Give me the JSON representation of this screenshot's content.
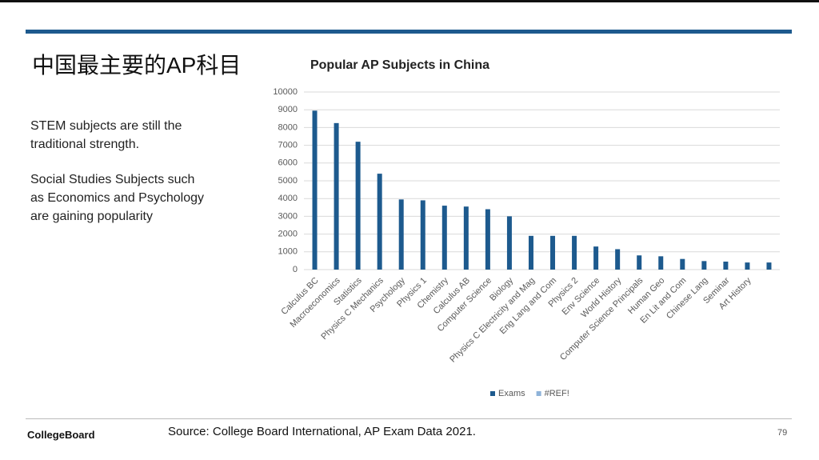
{
  "slide": {
    "title": "中国最主要的AP科目",
    "body": [
      "STEM subjects are still the traditional strength.",
      "Social Studies Subjects such as Economics and Psychology are gaining popularity"
    ],
    "logo": "CollegeBoard",
    "source": "Source: College Board International, AP Exam Data 2021.",
    "page_number": "79"
  },
  "chart_data": {
    "type": "bar",
    "title": "Popular AP Subjects in China",
    "categories": [
      "Calculus BC",
      "Macroeconomics",
      "Statistics",
      "Physics C Mechanics",
      "Psychology",
      "Physics 1",
      "Chemistry",
      "Calculus AB",
      "Computer Science",
      "Biology",
      "Physics C Electricity and Mag",
      "Eng Lang and Com",
      "Physics 2",
      "Env Science",
      "World History",
      "Computer Science Principals",
      "Human Geo",
      "En Lit and Com",
      "Chinese Lang",
      "Seminar",
      "Art History",
      null
    ],
    "series": [
      {
        "name": "Exams",
        "color": "#1d5a8e",
        "values": [
          8950,
          8250,
          7200,
          5400,
          3950,
          3900,
          3600,
          3550,
          3400,
          3000,
          1900,
          1900,
          1900,
          1300,
          1150,
          800,
          750,
          600,
          480,
          450,
          400,
          400
        ]
      },
      {
        "name": "#REF!",
        "color": "#8fb3d9",
        "values": [
          null,
          null,
          null,
          null,
          null,
          null,
          null,
          null,
          null,
          null,
          null,
          null,
          null,
          null,
          null,
          null,
          null,
          null,
          null,
          null,
          null,
          null
        ]
      }
    ],
    "ylim": [
      0,
      10000
    ],
    "yticks": [
      0,
      1000,
      2000,
      3000,
      4000,
      5000,
      6000,
      7000,
      8000,
      9000,
      10000
    ],
    "grid": true,
    "legend": "bottom"
  }
}
